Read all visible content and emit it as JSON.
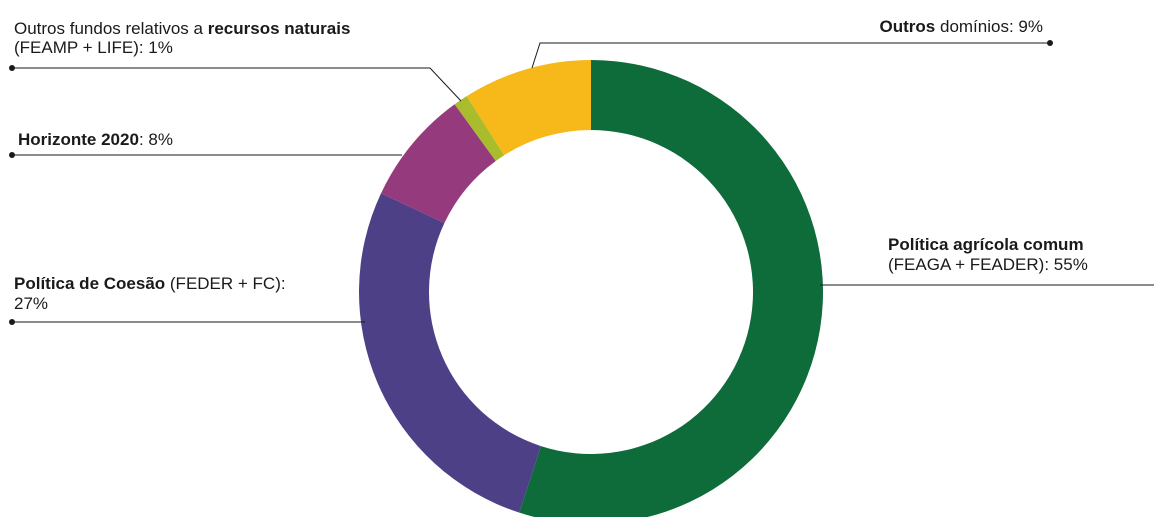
{
  "chart_data": {
    "type": "pie",
    "donut": true,
    "start_angle_deg": 0,
    "direction": "clockwise",
    "slices": [
      {
        "key": "pac",
        "bold": "Política agrícola comum",
        "rest": "",
        "line2": "(FEAGA + FEADER): 55%",
        "value": 55,
        "color": "#0e6b3a"
      },
      {
        "key": "coesao",
        "bold": "Política de Coesão",
        "rest": " (FEDER + FC):",
        "line2": "27%",
        "value": 27,
        "color": "#4e4087"
      },
      {
        "key": "horizonte",
        "bold": "Horizonte 2020",
        "rest": ": 8%",
        "line2": "",
        "value": 8,
        "color": "#953a7d"
      },
      {
        "key": "recursos",
        "pre": "Outros fundos relativos a ",
        "bold": "recursos naturais",
        "rest": "",
        "line2": "(FEAMP + LIFE): 1%",
        "value": 1,
        "color": "#a9bd2c"
      },
      {
        "key": "outros",
        "bold": "Outros",
        "rest": " domínios: 9%",
        "line2": "",
        "value": 9,
        "color": "#f7b81a"
      }
    ]
  }
}
